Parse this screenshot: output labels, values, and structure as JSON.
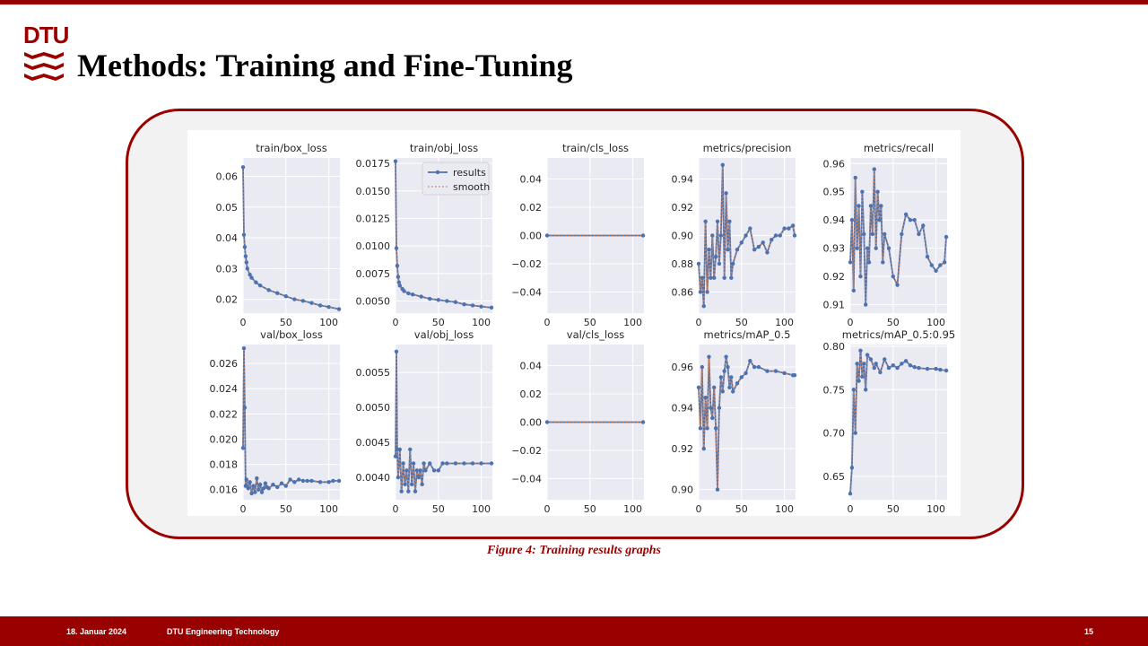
{
  "header": {
    "logo_text": "DTU",
    "title": "Methods: Training and Fine-Tuning"
  },
  "colors": {
    "brand": "#990000",
    "results": "#4c72b0",
    "smooth": "#dd8452",
    "plot_bg": "#eaeaf2"
  },
  "legend": {
    "results_label": "results",
    "smooth_label": "smooth"
  },
  "caption": "Figure 4: Training results graphs",
  "footer": {
    "date": "18. Januar 2024",
    "department": "DTU Engineering Technology",
    "page": "15"
  },
  "chart_data": [
    {
      "type": "line",
      "title": "train/box_loss",
      "xlim": [
        0,
        113
      ],
      "ylim": [
        0.0155,
        0.066
      ],
      "xticks": [
        "0",
        "50",
        "100"
      ],
      "yticks": [
        "0.02",
        "0.03",
        "0.04",
        "0.05",
        "0.06"
      ],
      "x": [
        0,
        1,
        2,
        3,
        4,
        5,
        8,
        10,
        15,
        20,
        30,
        40,
        50,
        60,
        70,
        80,
        90,
        100,
        112
      ],
      "series": [
        {
          "name": "results",
          "values": [
            0.063,
            0.041,
            0.037,
            0.034,
            0.032,
            0.03,
            0.028,
            0.027,
            0.0255,
            0.0245,
            0.023,
            0.022,
            0.021,
            0.02,
            0.0195,
            0.0188,
            0.018,
            0.0175,
            0.0168
          ]
        }
      ]
    },
    {
      "type": "line",
      "title": "train/obj_loss",
      "xlim": [
        0,
        113
      ],
      "ylim": [
        0.0039,
        0.018
      ],
      "xticks": [
        "0",
        "50",
        "100"
      ],
      "yticks": [
        "0.0050",
        "0.0075",
        "0.0100",
        "0.0125",
        "0.0150",
        "0.0175"
      ],
      "legend": true,
      "x": [
        0,
        1,
        2,
        3,
        4,
        5,
        8,
        10,
        15,
        20,
        30,
        40,
        50,
        60,
        70,
        80,
        90,
        100,
        112
      ],
      "series": [
        {
          "name": "results",
          "values": [
            0.0177,
            0.0098,
            0.0082,
            0.0072,
            0.0067,
            0.0064,
            0.0061,
            0.0059,
            0.0057,
            0.0056,
            0.0054,
            0.0052,
            0.0051,
            0.005,
            0.0049,
            0.0047,
            0.0046,
            0.0045,
            0.0044
          ]
        }
      ]
    },
    {
      "type": "line",
      "title": "train/cls_loss",
      "xlim": [
        0,
        113
      ],
      "ylim": [
        -0.055,
        0.055
      ],
      "xticks": [
        "0",
        "50",
        "100"
      ],
      "yticks": [
        "−0.04",
        "−0.02",
        "0.00",
        "0.02",
        "0.04"
      ],
      "x": [
        0,
        112
      ],
      "series": [
        {
          "name": "results",
          "values": [
            0,
            0
          ]
        }
      ]
    },
    {
      "type": "line",
      "title": "metrics/precision",
      "xlim": [
        0,
        113
      ],
      "ylim": [
        0.845,
        0.955
      ],
      "xticks": [
        "0",
        "50",
        "100"
      ],
      "yticks": [
        "0.86",
        "0.88",
        "0.90",
        "0.92",
        "0.94"
      ],
      "x": [
        0,
        2,
        4,
        6,
        8,
        10,
        12,
        14,
        16,
        18,
        20,
        22,
        24,
        26,
        28,
        30,
        32,
        34,
        36,
        38,
        40,
        45,
        50,
        55,
        60,
        65,
        70,
        75,
        80,
        85,
        90,
        95,
        100,
        105,
        110,
        112
      ],
      "series": [
        {
          "name": "results",
          "values": [
            0.88,
            0.86,
            0.87,
            0.85,
            0.91,
            0.86,
            0.89,
            0.87,
            0.9,
            0.87,
            0.885,
            0.91,
            0.88,
            0.9,
            0.95,
            0.87,
            0.93,
            0.89,
            0.91,
            0.87,
            0.88,
            0.89,
            0.895,
            0.9,
            0.905,
            0.89,
            0.892,
            0.895,
            0.888,
            0.897,
            0.9,
            0.9,
            0.905,
            0.905,
            0.907,
            0.9
          ]
        }
      ]
    },
    {
      "type": "line",
      "title": "metrics/recall",
      "xlim": [
        0,
        113
      ],
      "ylim": [
        0.907,
        0.962
      ],
      "xticks": [
        "0",
        "50",
        "100"
      ],
      "yticks": [
        "0.91",
        "0.92",
        "0.93",
        "0.94",
        "0.95",
        "0.96"
      ],
      "x": [
        0,
        2,
        4,
        6,
        8,
        10,
        12,
        14,
        16,
        18,
        20,
        22,
        24,
        26,
        28,
        30,
        32,
        34,
        36,
        38,
        40,
        45,
        50,
        55,
        60,
        65,
        70,
        75,
        80,
        85,
        90,
        95,
        100,
        105,
        110,
        112
      ],
      "series": [
        {
          "name": "results",
          "values": [
            0.925,
            0.94,
            0.915,
            0.955,
            0.93,
            0.945,
            0.92,
            0.95,
            0.935,
            0.91,
            0.93,
            0.925,
            0.945,
            0.935,
            0.958,
            0.93,
            0.95,
            0.94,
            0.945,
            0.925,
            0.935,
            0.93,
            0.92,
            0.917,
            0.935,
            0.942,
            0.94,
            0.94,
            0.935,
            0.938,
            0.927,
            0.924,
            0.922,
            0.924,
            0.925,
            0.934
          ]
        }
      ]
    },
    {
      "type": "line",
      "title": "val/box_loss",
      "xlim": [
        0,
        113
      ],
      "ylim": [
        0.0152,
        0.0275
      ],
      "xticks": [
        "0",
        "50",
        "100"
      ],
      "yticks": [
        "0.016",
        "0.018",
        "0.020",
        "0.022",
        "0.024",
        "0.026"
      ],
      "x": [
        0,
        1,
        2,
        3,
        4,
        6,
        8,
        10,
        12,
        14,
        16,
        18,
        20,
        22,
        24,
        26,
        28,
        30,
        35,
        40,
        45,
        50,
        55,
        60,
        65,
        70,
        75,
        80,
        90,
        100,
        105,
        112
      ],
      "series": [
        {
          "name": "results",
          "values": [
            0.0193,
            0.0272,
            0.0225,
            0.0163,
            0.0168,
            0.0161,
            0.0166,
            0.0157,
            0.0163,
            0.0158,
            0.0169,
            0.016,
            0.0164,
            0.0158,
            0.0161,
            0.0165,
            0.0162,
            0.0161,
            0.0164,
            0.0162,
            0.0165,
            0.0163,
            0.0168,
            0.0166,
            0.0168,
            0.0167,
            0.0167,
            0.0167,
            0.0166,
            0.0166,
            0.0167,
            0.0167
          ]
        }
      ]
    },
    {
      "type": "line",
      "title": "val/obj_loss",
      "xlim": [
        0,
        113
      ],
      "ylim": [
        0.00368,
        0.0059
      ],
      "xticks": [
        "0",
        "50",
        "100"
      ],
      "yticks": [
        "0.0040",
        "0.0045",
        "0.0050",
        "0.0055"
      ],
      "x": [
        0,
        1,
        2,
        3,
        5,
        7,
        9,
        11,
        13,
        15,
        17,
        19,
        21,
        23,
        25,
        27,
        29,
        31,
        33,
        35,
        40,
        45,
        50,
        55,
        60,
        70,
        80,
        90,
        100,
        112
      ],
      "series": [
        {
          "name": "results",
          "values": [
            0.0043,
            0.0058,
            0.0044,
            0.004,
            0.0044,
            0.0038,
            0.0042,
            0.0039,
            0.0041,
            0.0038,
            0.0044,
            0.0039,
            0.0042,
            0.0038,
            0.0041,
            0.004,
            0.0041,
            0.0039,
            0.0042,
            0.0041,
            0.0042,
            0.0041,
            0.0041,
            0.0042,
            0.0042,
            0.0042,
            0.0042,
            0.0042,
            0.0042,
            0.0042
          ]
        }
      ]
    },
    {
      "type": "line",
      "title": "val/cls_loss",
      "xlim": [
        0,
        113
      ],
      "ylim": [
        -0.055,
        0.055
      ],
      "xticks": [
        "0",
        "50",
        "100"
      ],
      "yticks": [
        "−0.04",
        "−0.02",
        "0.00",
        "0.02",
        "0.04"
      ],
      "x": [
        0,
        112
      ],
      "series": [
        {
          "name": "results",
          "values": [
            0,
            0
          ]
        }
      ]
    },
    {
      "type": "line",
      "title": "metrics/mAP_0.5",
      "xlim": [
        0,
        113
      ],
      "ylim": [
        0.895,
        0.971
      ],
      "xticks": [
        "0",
        "50",
        "100"
      ],
      "yticks": [
        "0.90",
        "0.92",
        "0.94",
        "0.96"
      ],
      "x": [
        0,
        2,
        4,
        6,
        8,
        10,
        12,
        14,
        16,
        18,
        20,
        22,
        24,
        26,
        28,
        30,
        32,
        34,
        36,
        38,
        40,
        45,
        50,
        55,
        60,
        65,
        70,
        80,
        90,
        100,
        110,
        112
      ],
      "series": [
        {
          "name": "results",
          "values": [
            0.95,
            0.93,
            0.96,
            0.92,
            0.945,
            0.93,
            0.965,
            0.94,
            0.935,
            0.95,
            0.93,
            0.9,
            0.94,
            0.955,
            0.948,
            0.958,
            0.965,
            0.96,
            0.95,
            0.955,
            0.948,
            0.952,
            0.955,
            0.957,
            0.963,
            0.96,
            0.96,
            0.958,
            0.958,
            0.957,
            0.956,
            0.956
          ]
        }
      ]
    },
    {
      "type": "line",
      "title": "metrics/mAP_0.5:0.95",
      "xlim": [
        0,
        113
      ],
      "ylim": [
        0.623,
        0.802
      ],
      "xticks": [
        "0",
        "50",
        "100"
      ],
      "yticks": [
        "0.65",
        "0.70",
        "0.75",
        "0.80"
      ],
      "x": [
        0,
        2,
        4,
        6,
        8,
        10,
        12,
        14,
        16,
        18,
        20,
        24,
        28,
        30,
        35,
        40,
        45,
        50,
        55,
        60,
        65,
        70,
        75,
        80,
        90,
        100,
        105,
        112
      ],
      "series": [
        {
          "name": "results",
          "values": [
            0.63,
            0.66,
            0.75,
            0.7,
            0.78,
            0.76,
            0.795,
            0.765,
            0.78,
            0.75,
            0.79,
            0.785,
            0.775,
            0.78,
            0.77,
            0.785,
            0.775,
            0.778,
            0.775,
            0.78,
            0.783,
            0.778,
            0.776,
            0.775,
            0.774,
            0.774,
            0.773,
            0.772
          ]
        }
      ]
    }
  ]
}
